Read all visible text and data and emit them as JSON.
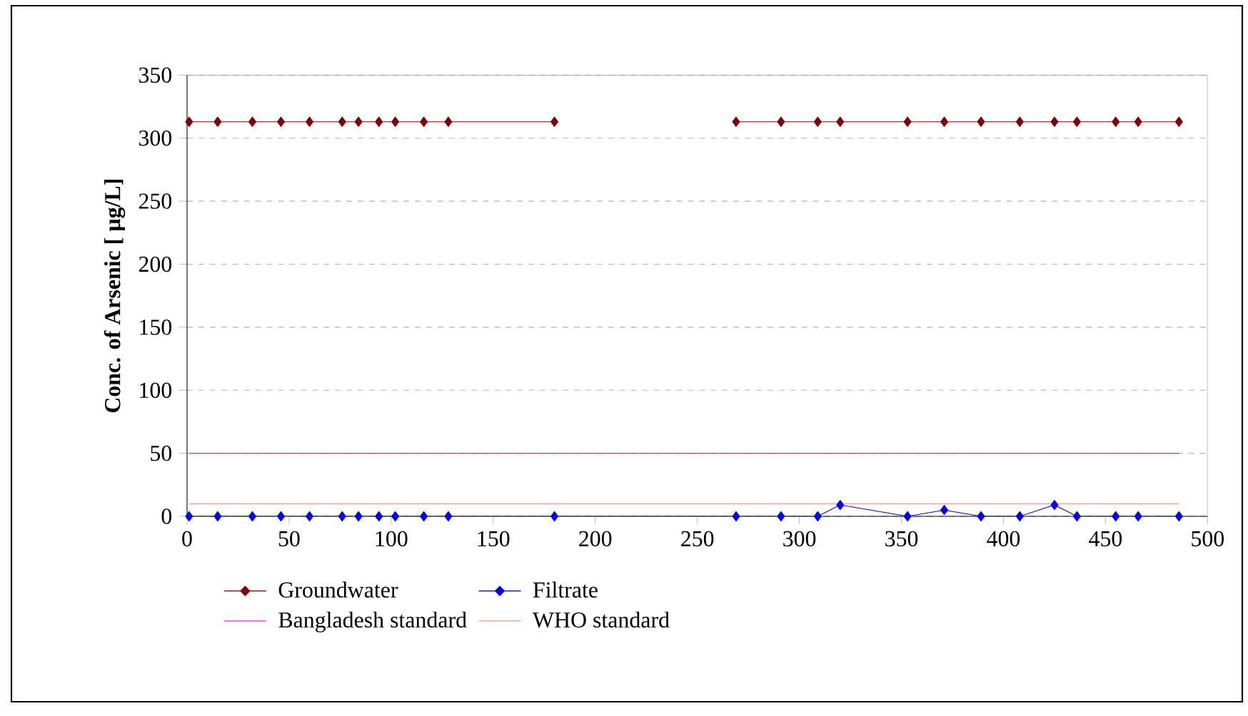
{
  "chart_data": {
    "type": "line",
    "ylabel": "Conc. of Arsenic [  µg/L]",
    "xlim": [
      0,
      500
    ],
    "xticks": [
      0,
      50,
      100,
      150,
      200,
      250,
      300,
      350,
      400,
      450,
      500
    ],
    "ylim": [
      0,
      350
    ],
    "yticks": [
      0,
      50,
      100,
      150,
      200,
      250,
      300,
      350
    ],
    "grid": "y",
    "legend": "bottom",
    "series": [
      {
        "name": "Groundwater",
        "color": "#800000",
        "marker": "diamond",
        "x": [
          1,
          15,
          32,
          46,
          60,
          76,
          84,
          94,
          102,
          116,
          128,
          180,
          225,
          269,
          291,
          309,
          320,
          353,
          371,
          389,
          408,
          425,
          436,
          455,
          466,
          486
        ],
        "values": [
          313,
          313,
          313,
          313,
          313,
          313,
          313,
          313,
          313,
          313,
          313,
          313,
          null,
          313,
          313,
          313,
          313,
          313,
          313,
          313,
          313,
          313,
          313,
          313,
          313,
          313
        ]
      },
      {
        "name": "Filtrate",
        "color": "#0000ff",
        "marker": "diamond",
        "x": [
          1,
          15,
          32,
          46,
          60,
          76,
          84,
          94,
          102,
          116,
          128,
          180,
          269,
          291,
          309,
          320,
          353,
          371,
          389,
          408,
          425,
          436,
          455,
          466,
          486
        ],
        "values": [
          0,
          0,
          0,
          0,
          0,
          0,
          0,
          0,
          0,
          0,
          0,
          0,
          0,
          0,
          0,
          9,
          0,
          5,
          0,
          0,
          9,
          0,
          0,
          0,
          0
        ]
      },
      {
        "name": "Bangladesh standard",
        "color": "#ff00ff",
        "marker": "none",
        "x": [
          1,
          486
        ],
        "values": [
          50,
          50
        ]
      },
      {
        "name": "WHO standard",
        "color": "#ff8080",
        "marker": "none",
        "x": [
          1,
          486
        ],
        "values": [
          10,
          10
        ]
      }
    ]
  }
}
